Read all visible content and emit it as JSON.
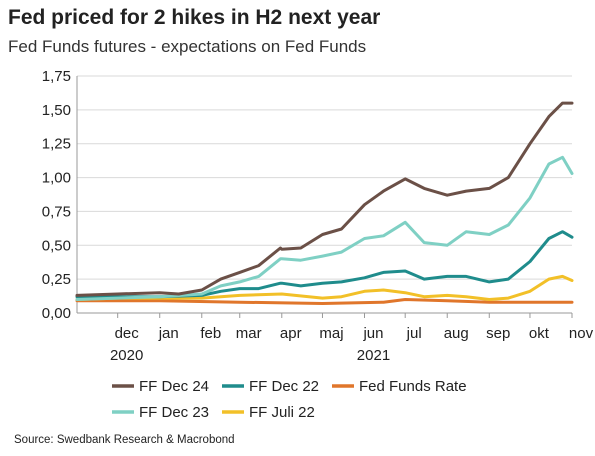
{
  "title": "Fed priced for 2 hikes in H2 next year",
  "subtitle": "Fed Funds futures - expectations on Fed Funds",
  "source": "Source: Swedbank Research & Macrobond",
  "chart_data": {
    "type": "line",
    "ylim": [
      0,
      1.75
    ],
    "y_ticks": [
      "0,00",
      "0,25",
      "0,50",
      "0,75",
      "1,00",
      "1,25",
      "1,50",
      "1,75"
    ],
    "x_month_labels": [
      "dec",
      "jan",
      "feb",
      "mar",
      "apr",
      "maj",
      "jun",
      "jul",
      "aug",
      "sep",
      "okt",
      "nov"
    ],
    "x_year_labels": [
      "2020",
      "2021"
    ],
    "grid": "horizontal",
    "legend_position": "bottom",
    "series": [
      {
        "name": "FF Dec 24",
        "color": "#6b5047",
        "x": [
          "2020-11-01",
          "2020-12-01",
          "2021-01-01",
          "2021-01-15",
          "2021-02-01",
          "2021-02-15",
          "2021-03-01",
          "2021-03-15",
          "2021-03-31",
          "2021-04-01",
          "2021-04-15",
          "2021-05-01",
          "2021-05-15",
          "2021-06-01",
          "2021-06-15",
          "2021-07-01",
          "2021-07-15",
          "2021-08-01",
          "2021-08-15",
          "2021-09-01",
          "2021-09-15",
          "2021-10-01",
          "2021-10-15",
          "2021-10-25",
          "2021-11-01"
        ],
        "y": [
          0.13,
          0.14,
          0.15,
          0.14,
          0.17,
          0.25,
          0.3,
          0.35,
          0.48,
          0.47,
          0.48,
          0.58,
          0.62,
          0.8,
          0.9,
          0.99,
          0.92,
          0.87,
          0.9,
          0.92,
          1.0,
          1.25,
          1.45,
          1.55,
          1.55
        ]
      },
      {
        "name": "FF Dec 23",
        "color": "#7fd0c4",
        "x": [
          "2020-11-01",
          "2020-12-01",
          "2021-01-01",
          "2021-02-01",
          "2021-02-15",
          "2021-03-01",
          "2021-03-15",
          "2021-03-31",
          "2021-04-01",
          "2021-04-15",
          "2021-05-01",
          "2021-05-15",
          "2021-06-01",
          "2021-06-15",
          "2021-07-01",
          "2021-07-15",
          "2021-08-01",
          "2021-08-15",
          "2021-09-01",
          "2021-09-15",
          "2021-10-01",
          "2021-10-15",
          "2021-10-25",
          "2021-11-01"
        ],
        "y": [
          0.1,
          0.11,
          0.12,
          0.14,
          0.2,
          0.23,
          0.27,
          0.4,
          0.4,
          0.39,
          0.42,
          0.45,
          0.55,
          0.57,
          0.67,
          0.52,
          0.5,
          0.6,
          0.58,
          0.65,
          0.85,
          1.1,
          1.15,
          1.03
        ]
      },
      {
        "name": "FF Dec 22",
        "color": "#1f8c8c",
        "x": [
          "2020-11-01",
          "2020-12-01",
          "2021-01-01",
          "2021-02-01",
          "2021-02-15",
          "2021-03-01",
          "2021-03-15",
          "2021-03-31",
          "2021-04-01",
          "2021-04-15",
          "2021-05-01",
          "2021-05-15",
          "2021-06-01",
          "2021-06-15",
          "2021-07-01",
          "2021-07-15",
          "2021-08-01",
          "2021-08-15",
          "2021-09-01",
          "2021-09-15",
          "2021-10-01",
          "2021-10-15",
          "2021-10-25",
          "2021-11-01"
        ],
        "y": [
          0.12,
          0.12,
          0.12,
          0.13,
          0.16,
          0.18,
          0.18,
          0.22,
          0.22,
          0.2,
          0.22,
          0.23,
          0.26,
          0.3,
          0.31,
          0.25,
          0.27,
          0.27,
          0.23,
          0.25,
          0.38,
          0.55,
          0.6,
          0.56
        ]
      },
      {
        "name": "FF Juli 22",
        "color": "#f2c028",
        "x": [
          "2020-11-01",
          "2020-12-01",
          "2021-01-01",
          "2021-02-01",
          "2021-03-01",
          "2021-04-01",
          "2021-05-01",
          "2021-05-15",
          "2021-06-01",
          "2021-06-15",
          "2021-07-01",
          "2021-07-15",
          "2021-08-01",
          "2021-08-15",
          "2021-09-01",
          "2021-09-15",
          "2021-10-01",
          "2021-10-15",
          "2021-10-25",
          "2021-11-01"
        ],
        "y": [
          0.1,
          0.11,
          0.11,
          0.11,
          0.13,
          0.14,
          0.11,
          0.12,
          0.16,
          0.17,
          0.15,
          0.12,
          0.13,
          0.12,
          0.1,
          0.11,
          0.16,
          0.25,
          0.27,
          0.24
        ]
      },
      {
        "name": "Fed Funds  Rate",
        "color": "#e0762b",
        "x": [
          "2020-11-01",
          "2021-01-01",
          "2021-03-01",
          "2021-05-01",
          "2021-06-15",
          "2021-07-01",
          "2021-08-01",
          "2021-09-01",
          "2021-10-01",
          "2021-11-01"
        ],
        "y": [
          0.09,
          0.09,
          0.08,
          0.07,
          0.08,
          0.1,
          0.09,
          0.08,
          0.08,
          0.08
        ]
      }
    ],
    "legend_order": [
      "FF Dec 24",
      "FF Dec 22",
      "Fed Funds  Rate",
      "FF Dec 23",
      "FF Juli 22"
    ]
  }
}
